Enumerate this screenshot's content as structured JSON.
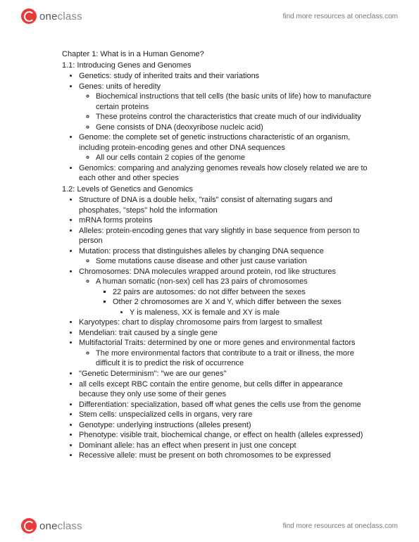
{
  "brand": {
    "one": "one",
    "class": "class"
  },
  "tagline": "find more resources at oneclass.com",
  "chapter": "Chapter 1: What is in a Human Genome?",
  "s1": {
    "title": "1.1: Introducing Genes and Genomes",
    "li1": "Genetics: study of inherited traits and their variations",
    "li2": "Genes: units of heredity",
    "li2a": "Biochemical instructions that tell cells (the basic units of life) how to manufacture certain proteins",
    "li2b": "These proteins control the characteristics that create much of our individuality",
    "li2c": "Gene consists of DNA (deoxyribose nucleic acid)",
    "li3": "Genome: the complete set of genetic instructions characteristic of an organism, including protein-encoding genes and other DNA sequences",
    "li3a": "All our cells contain 2 copies of the genome",
    "li4": "Genomics: comparing and analyzing genomes reveals how closely related we are to each other and other species"
  },
  "s2": {
    "title": "1.2: Levels of Genetics and Genomics",
    "li1": "Structure of DNA is a double helix, \"rails\" consist of alternating sugars and phosphates, \"steps\" hold the information",
    "li2": "mRNA forms proteins",
    "li3": "Alleles: protein-encoding genes that vary slightly in base sequence from person to person",
    "li4": "Mutation: process that distinguishes alleles by changing DNA sequence",
    "li4a": "Some mutations cause disease and other just cause variation",
    "li5": "Chromosomes: DNA molecules wrapped around protein, rod like structures",
    "li5a": "A human somatic (non-sex) cell has 23 pairs of chromosomes",
    "li5a1": "22 pairs are autosomes: do not differ between the sexes",
    "li5a2": "Other 2 chromosomes are X and Y, which differ between the sexes",
    "li5a2a": "Y is maleness, XX is female and XY is male",
    "li6": "Karyotypes: chart to display chromosome pairs from largest to smallest",
    "li7": "Mendelian: trait caused by a single gene",
    "li8": "Multifactorial Traits: determined by one or more genes and environmental factors",
    "li8a": "The more environmental factors that contribute to a trait or illness, the more difficult it is to predict the risk of occurrence",
    "li9": "\"Genetic Determinism\": \"we are our genes\"",
    "li10": "all cells except RBC contain the entire genome, but cells differ in appearance because they only use some of their genes",
    "li11": "Differentiation: specialization, based off what genes the cells use from the genome",
    "li12": "Stem cells: unspecialized cells in organs, very rare",
    "li13": "Genotype: underlying instructions (alleles present)",
    "li14": "Phenotype: visible trait, biochemical change, or effect on health (alleles expressed)",
    "li15": "Dominant allele: has an effect when present in just one concept",
    "li16": "Recessive allele: must be present on both chromosomes to be expressed"
  }
}
